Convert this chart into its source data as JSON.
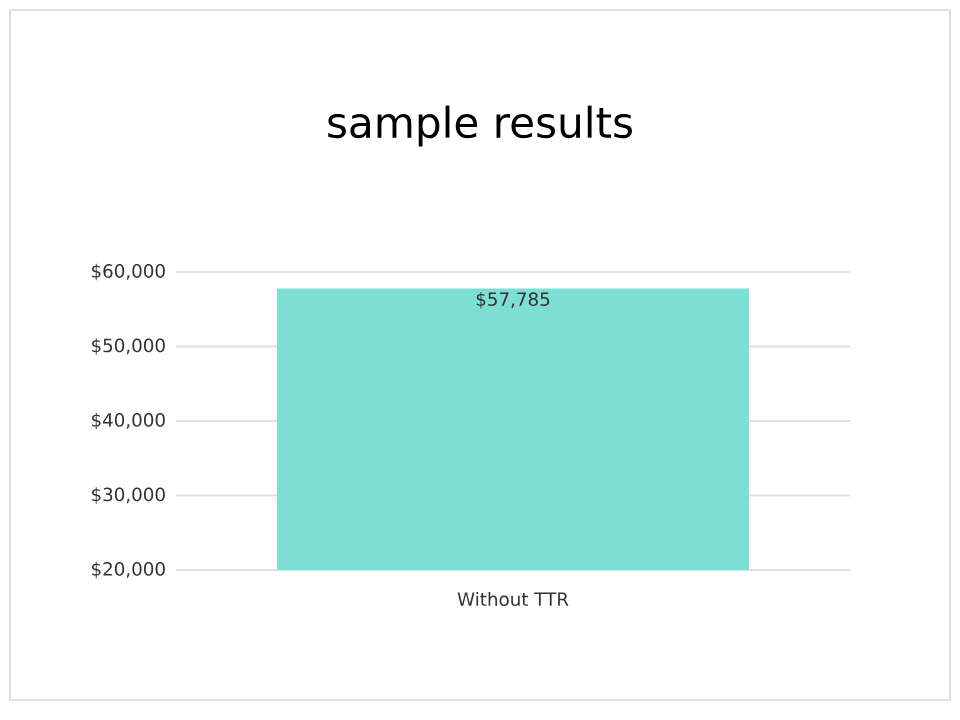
{
  "chart_data": {
    "type": "bar",
    "title": "sample results",
    "categories": [
      "Without TTR"
    ],
    "values": [
      57785
    ],
    "color": "#7ddfd3",
    "value_labels": [
      "$57,785"
    ],
    "ylim": [
      20000,
      60000
    ],
    "yticks": [
      {
        "value": 20000,
        "label": "$20,000"
      },
      {
        "value": 30000,
        "label": "$30,000"
      },
      {
        "value": 40000,
        "label": "$40,000"
      },
      {
        "value": 50000,
        "label": "$50,000"
      },
      {
        "value": 60000,
        "label": "$60,000"
      }
    ],
    "grid": "y"
  }
}
